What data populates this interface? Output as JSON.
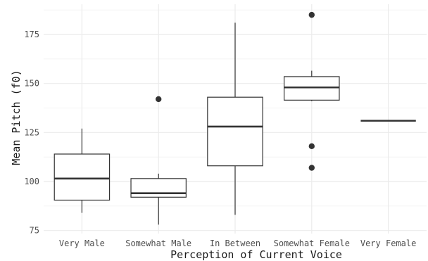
{
  "chart_data": {
    "type": "box",
    "title": "",
    "xlabel": "Perception of Current Voice",
    "ylabel": "Mean Pitch (f0)",
    "ylim": [
      74,
      190
    ],
    "yticks": [
      75,
      100,
      125,
      150,
      175
    ],
    "grid": true,
    "categories": [
      "Very Male",
      "Somewhat Male",
      "In Between",
      "Somewhat Female",
      "Very Female"
    ],
    "boxes": [
      {
        "category": "Very Male",
        "whisker_low": 84,
        "q1": 90.5,
        "median": 101.5,
        "q3": 114,
        "whisker_high": 127,
        "outliers": []
      },
      {
        "category": "Somewhat Male",
        "whisker_low": 78,
        "q1": 92,
        "median": 94,
        "q3": 101.5,
        "whisker_high": 104,
        "outliers": [
          142
        ]
      },
      {
        "category": "In Between",
        "whisker_low": 83,
        "q1": 108,
        "median": 128,
        "q3": 143,
        "whisker_high": 181,
        "outliers": []
      },
      {
        "category": "Somewhat Female",
        "whisker_low": 141,
        "q1": 141.5,
        "median": 148,
        "q3": 153.5,
        "whisker_high": 156.5,
        "outliers": [
          185,
          118,
          107
        ]
      },
      {
        "category": "Very Female",
        "whisker_low": 131,
        "q1": 131,
        "median": 131,
        "q3": 131,
        "whisker_high": 131,
        "outliers": []
      }
    ]
  }
}
